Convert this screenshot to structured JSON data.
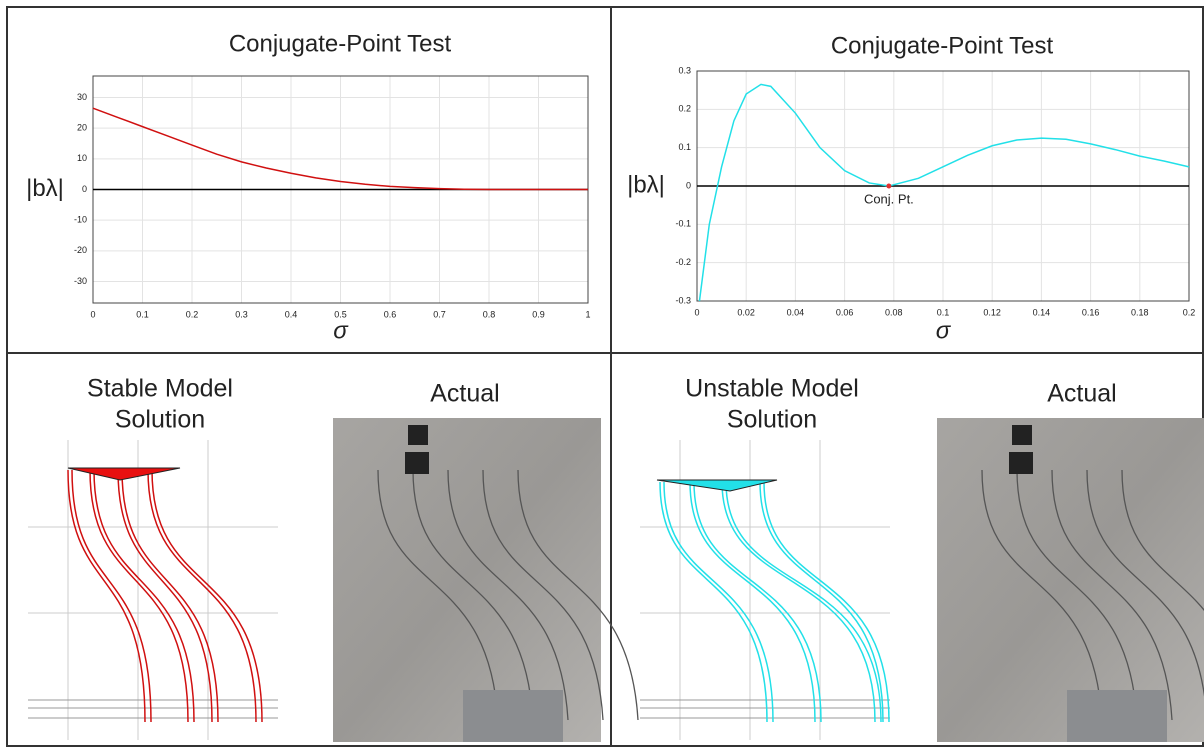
{
  "chart_data": [
    {
      "type": "line",
      "title": "Conjugate-Point Test",
      "y_label": "|bλ|",
      "x_label": "σ",
      "x": [
        0,
        0.05,
        0.1,
        0.15,
        0.2,
        0.25,
        0.3,
        0.35,
        0.4,
        0.45,
        0.5,
        0.55,
        0.6,
        0.65,
        0.7,
        0.75,
        0.8,
        0.85,
        0.9,
        0.95,
        1
      ],
      "values": [
        26.5,
        23.5,
        20.5,
        17.5,
        14.5,
        11.5,
        9,
        7,
        5.3,
        3.8,
        2.6,
        1.7,
        1.0,
        0.6,
        0.3,
        0.1,
        0,
        0,
        0,
        0,
        0
      ],
      "color": "#d01010",
      "xlim": [
        0,
        1
      ],
      "ylim": [
        -37,
        37
      ],
      "xticks": [
        0,
        0.1,
        0.2,
        0.3,
        0.4,
        0.5,
        0.6,
        0.7,
        0.8,
        0.9,
        1
      ],
      "yticks": [
        -30,
        -20,
        -10,
        0,
        10,
        20,
        30
      ],
      "hline": 0,
      "grid": true
    },
    {
      "type": "line",
      "title": "Conjugate-Point Test",
      "y_label": "|bλ|",
      "x_label": "σ",
      "x": [
        0.001,
        0.005,
        0.01,
        0.015,
        0.02,
        0.026,
        0.03,
        0.04,
        0.05,
        0.06,
        0.07,
        0.078,
        0.09,
        0.1,
        0.11,
        0.12,
        0.13,
        0.14,
        0.15,
        0.16,
        0.17,
        0.18,
        0.19,
        0.2
      ],
      "values": [
        -0.3,
        -0.1,
        0.05,
        0.17,
        0.24,
        0.265,
        0.26,
        0.19,
        0.1,
        0.04,
        0.008,
        0,
        0.02,
        0.05,
        0.08,
        0.105,
        0.12,
        0.125,
        0.122,
        0.11,
        0.095,
        0.078,
        0.065,
        0.05
      ],
      "color": "#22e0e8",
      "xlim": [
        0,
        0.2
      ],
      "ylim": [
        -0.3,
        0.3
      ],
      "xticks": [
        0,
        0.02,
        0.04,
        0.06,
        0.08,
        0.1,
        0.12,
        0.14,
        0.16,
        0.18,
        0.2
      ],
      "yticks": [
        -0.3,
        -0.2,
        -0.1,
        0,
        0.1,
        0.2,
        0.3
      ],
      "hline": 0,
      "grid": true,
      "annotation": {
        "text": "Conj. Pt.",
        "x": 0.078,
        "y": 0
      }
    }
  ],
  "panels": {
    "stable_model": [
      "Stable Model",
      "Solution"
    ],
    "stable_actual": "Actual",
    "unstable_model": [
      "Unstable Model",
      "Solution"
    ],
    "unstable_actual": "Actual"
  }
}
